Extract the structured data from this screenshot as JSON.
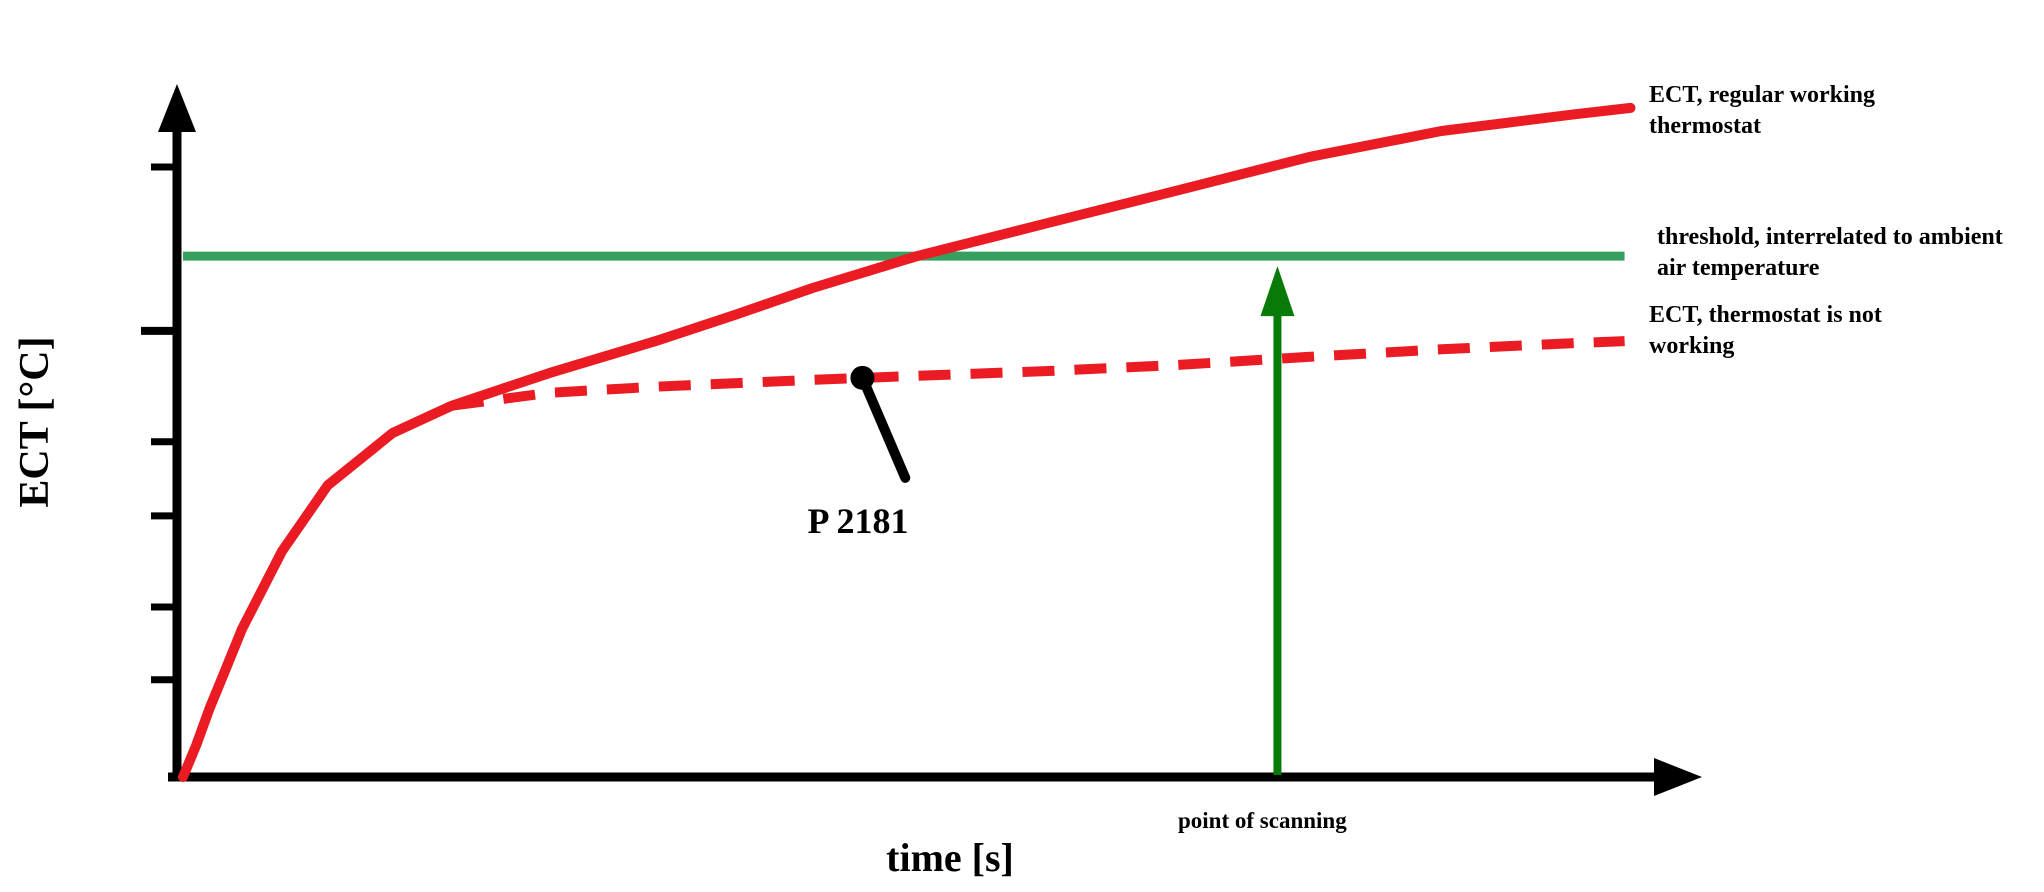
{
  "figure": {
    "background": "#ffffff"
  },
  "colors": {
    "curve_red": "#ea1b22",
    "threshold_green": "#36a05e",
    "arrow_green": "#077a07",
    "axis_black": "#000000"
  },
  "labels": {
    "y_axis": "ECT [°C]",
    "x_axis": "time [s]"
  },
  "chart_data": {
    "type": "line",
    "title": "",
    "xlabel": "time [s]",
    "ylabel": "ECT [°C]",
    "x_range": [
      0,
      100
    ],
    "y_range": [
      0,
      100
    ],
    "grid": false,
    "axis_numeric_labels": false,
    "legend_position": "right",
    "series": [
      {
        "name": "ECT, regular working thermostat",
        "line_style": "solid",
        "color": "#ea1b22",
        "points": [
          [
            0,
            0
          ],
          [
            0.9,
            4.7
          ],
          [
            1.8,
            10.1
          ],
          [
            2.8,
            15.4
          ],
          [
            4.0,
            21.8
          ],
          [
            6.7,
            33.2
          ],
          [
            9.8,
            42.9
          ],
          [
            14.2,
            50.6
          ],
          [
            18.2,
            54.6
          ],
          [
            24.8,
            59.4
          ],
          [
            32.0,
            64.1
          ],
          [
            37.3,
            67.9
          ],
          [
            42.6,
            71.9
          ],
          [
            49.7,
            76.6
          ],
          [
            58.6,
            81.5
          ],
          [
            67.4,
            86.3
          ],
          [
            76.3,
            91.2
          ],
          [
            85.2,
            95.0
          ],
          [
            94.0,
            97.4
          ],
          [
            98.0,
            98.4
          ]
        ]
      },
      {
        "name": "ECT, thermostat is not working",
        "line_style": "dashed",
        "color": "#ea1b22",
        "points": [
          [
            18.2,
            54.6
          ],
          [
            24.8,
            56.5
          ],
          [
            32.0,
            57.4
          ],
          [
            37.3,
            57.9
          ],
          [
            42.6,
            58.4
          ],
          [
            49.7,
            59.0
          ],
          [
            58.6,
            59.7
          ],
          [
            67.4,
            60.6
          ],
          [
            76.3,
            61.8
          ],
          [
            85.2,
            62.9
          ],
          [
            94.0,
            63.8
          ],
          [
            97.6,
            64.1
          ]
        ]
      }
    ],
    "threshold_line": {
      "name": "threshold, interrelated to ambient air temperature",
      "y": 76.6,
      "x_start": 0,
      "x_end": 97.6,
      "color": "#36a05e"
    },
    "scan_marker": {
      "label": "point of scanning",
      "x": 74.1,
      "color": "#077a07"
    },
    "fault_code_annotation": {
      "label": "P 2181",
      "point": [
        46.0,
        58.7
      ],
      "leader_end": [
        48.9,
        44.0
      ]
    },
    "y_ticks": [
      {
        "y": 89.7,
        "long": false
      },
      {
        "y": 65.6,
        "long": true
      },
      {
        "y": 49.3,
        "long": false
      },
      {
        "y": 38.4,
        "long": false
      },
      {
        "y": 25.0,
        "long": false
      },
      {
        "y": 14.3,
        "long": false
      }
    ]
  }
}
